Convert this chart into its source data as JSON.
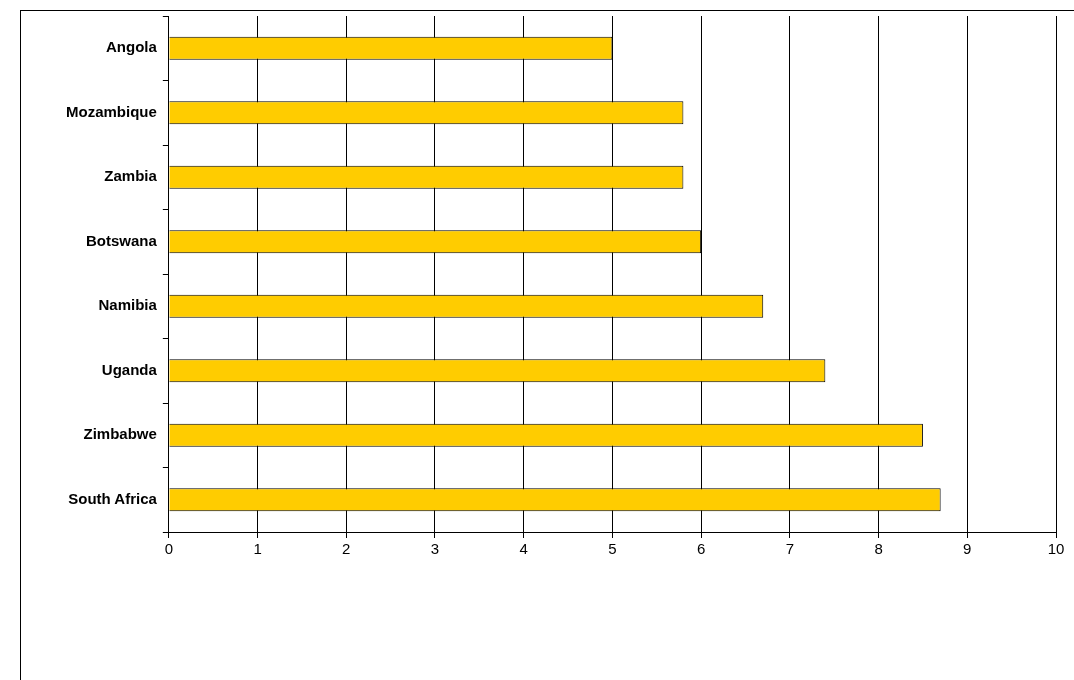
{
  "chart_data": {
    "type": "bar",
    "orientation": "horizontal",
    "categories": [
      "Angola",
      "Mozambique",
      "Zambia",
      "Botswana",
      "Namibia",
      "Uganda",
      "Zimbabwe",
      "South Africa"
    ],
    "values": [
      5.0,
      5.8,
      5.8,
      6.0,
      6.7,
      7.4,
      8.5,
      8.7
    ],
    "color": "#ffcc00",
    "xlim": [
      0,
      10
    ],
    "xticks": [
      0,
      1,
      2,
      3,
      4,
      5,
      6,
      7,
      8,
      9,
      10
    ],
    "grid": "x",
    "legend": false
  }
}
